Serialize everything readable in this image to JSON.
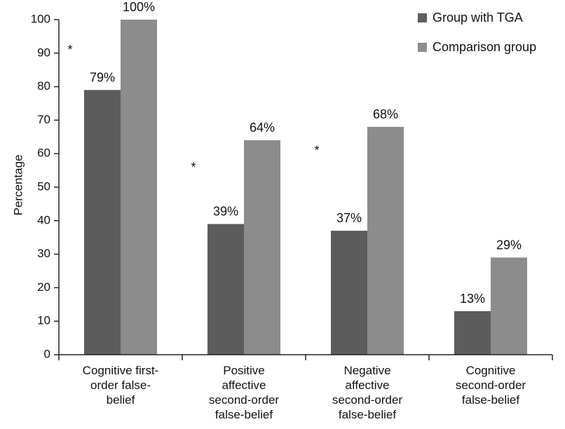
{
  "chart_data": {
    "type": "bar",
    "ylabel": "Percentage",
    "ylim": [
      0,
      100
    ],
    "yticks": [
      0,
      10,
      20,
      30,
      40,
      50,
      60,
      70,
      80,
      90,
      100
    ],
    "categories": [
      [
        "Cognitive first-",
        "order false-",
        "belief"
      ],
      [
        "Positive",
        "affective",
        "second-order",
        "false-belief"
      ],
      [
        "Negative",
        "affective",
        "second-order",
        "false-belief"
      ],
      [
        "Cognitive",
        "second-order",
        "false-belief"
      ]
    ],
    "series": [
      {
        "name": "Group with TGA",
        "color": "#5c5c5c",
        "values": [
          79,
          39,
          37,
          13
        ],
        "labels": [
          "79%",
          "39%",
          "37%",
          "13%"
        ]
      },
      {
        "name": "Comparison group",
        "color": "#8c8c8c",
        "values": [
          100,
          64,
          68,
          29
        ],
        "labels": [
          "100%",
          "64%",
          "68%",
          "29%"
        ]
      }
    ],
    "significance": [
      {
        "category_index": 0,
        "marker": "*",
        "y": 91
      },
      {
        "category_index": 1,
        "marker": "*",
        "y": 56
      },
      {
        "category_index": 2,
        "marker": "*",
        "y": 61
      }
    ],
    "legend_position": "top-right",
    "grid": false
  }
}
